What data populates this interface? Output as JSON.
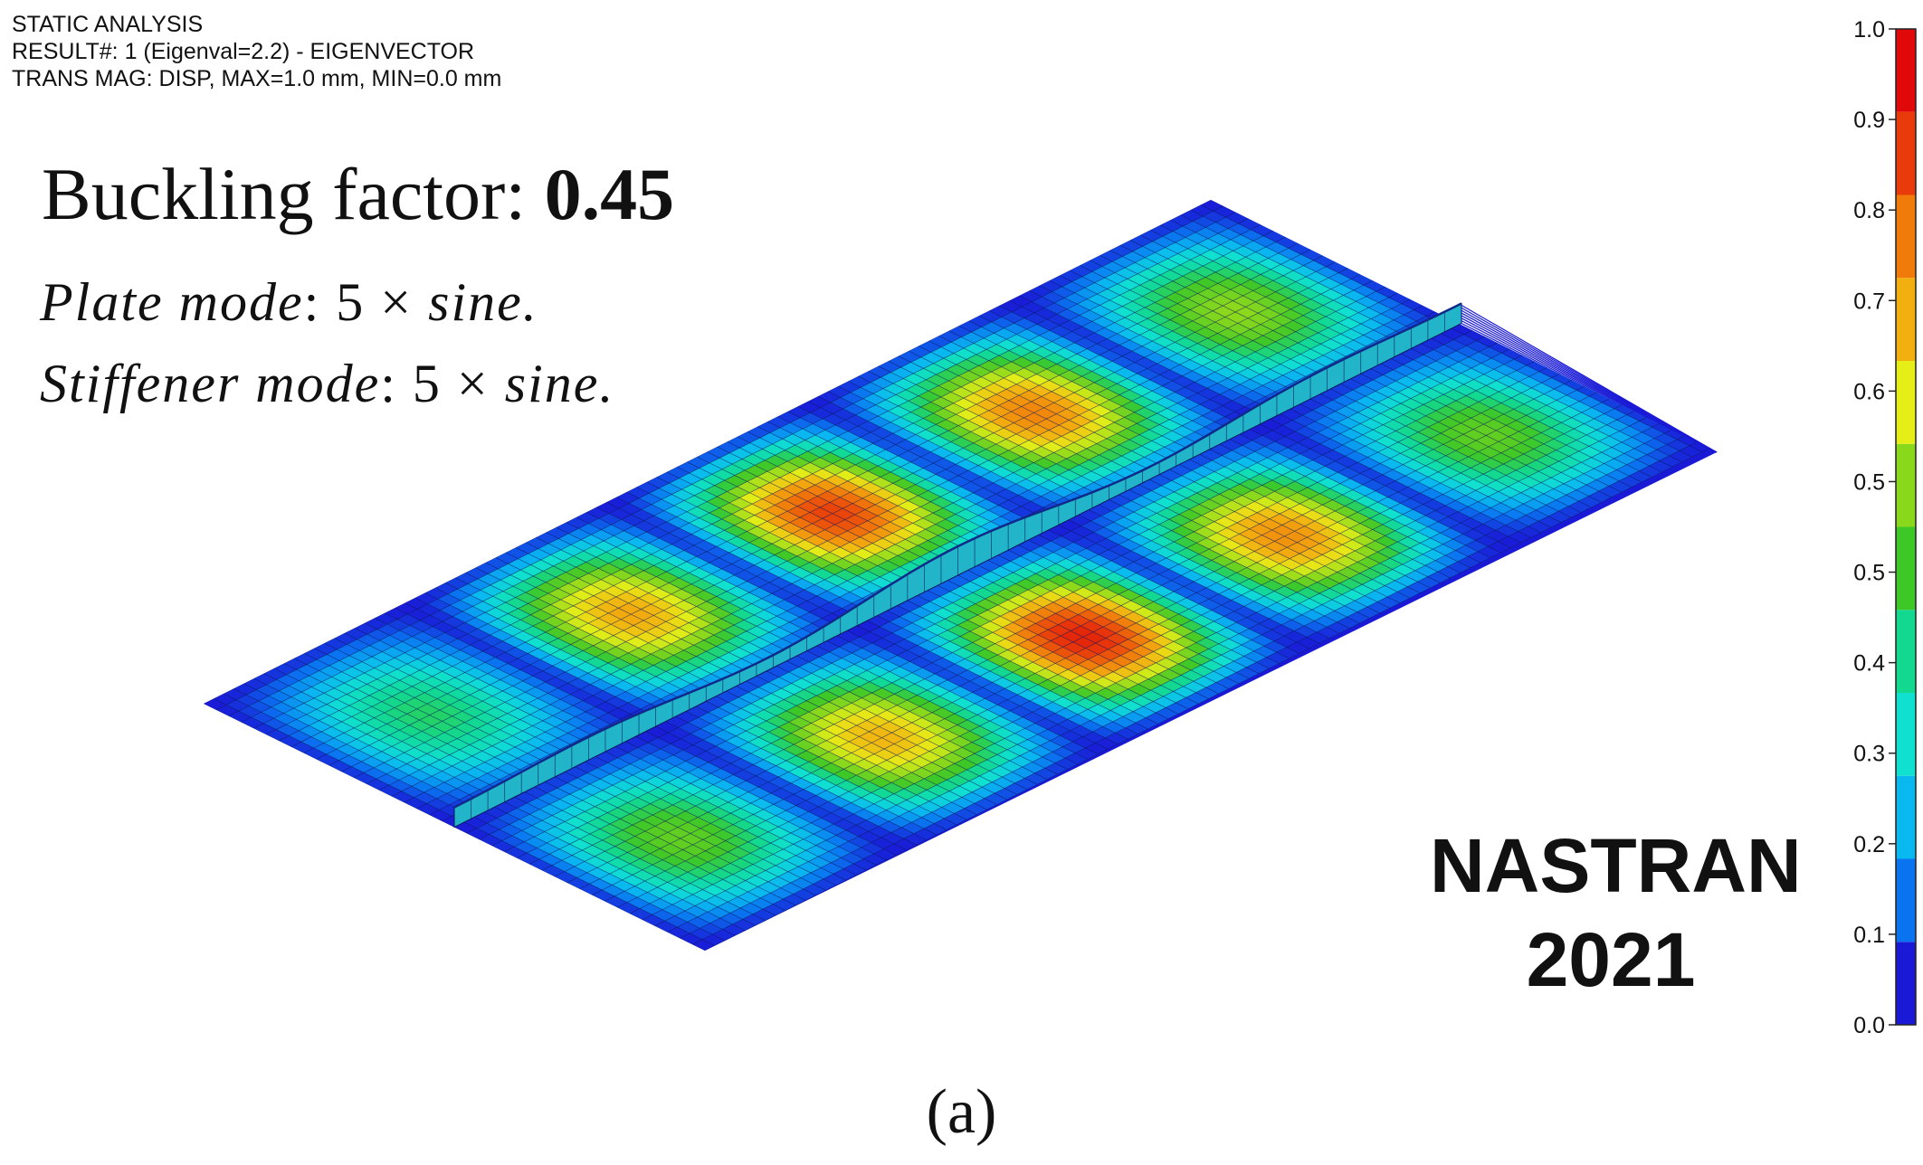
{
  "header": {
    "line1": "STATIC ANALYSIS",
    "line2": "RESULT#: 1 (Eigenval=2.2) - EIGENVECTOR",
    "line3": "TRANS MAG: DISP, MAX=1.0 mm, MIN=0.0 mm"
  },
  "buckling": {
    "label": "Buckling factor: ",
    "value": "0.45"
  },
  "modes": {
    "plate_label": "Plate mode",
    "plate_value": ": 5 × ",
    "plate_suffix": "sine.",
    "stiffener_label": "Stiffener mode",
    "stiffener_value": ": 5 × ",
    "stiffener_suffix": "sine."
  },
  "software": {
    "name": "NASTRAN",
    "version": "2021"
  },
  "caption": "(a)",
  "legend": {
    "ticks": [
      "1.0",
      "0.9",
      "0.8",
      "0.7",
      "0.6",
      "0.5",
      "0.5",
      "0.4",
      "0.3",
      "0.2",
      "0.1",
      "0.0"
    ],
    "colors": [
      "#1a1ad6",
      "#0a74f0",
      "#0ab8f0",
      "#10e0d0",
      "#12d890",
      "#3ec828",
      "#8ad81c",
      "#e6ee18",
      "#f2b010",
      "#f07a0a",
      "#e83a0a",
      "#e00808"
    ]
  },
  "plate": {
    "lobes_along_length": 5,
    "rows_across": 2,
    "peak_amplitudes_front": [
      0.5,
      0.72,
      0.95,
      0.78,
      0.5
    ],
    "peak_amplitudes_back": [
      0.4,
      0.74,
      0.9,
      0.8,
      0.55
    ],
    "edge_color": "#1a1ad6",
    "mesh_color": "#0b1a5a"
  }
}
